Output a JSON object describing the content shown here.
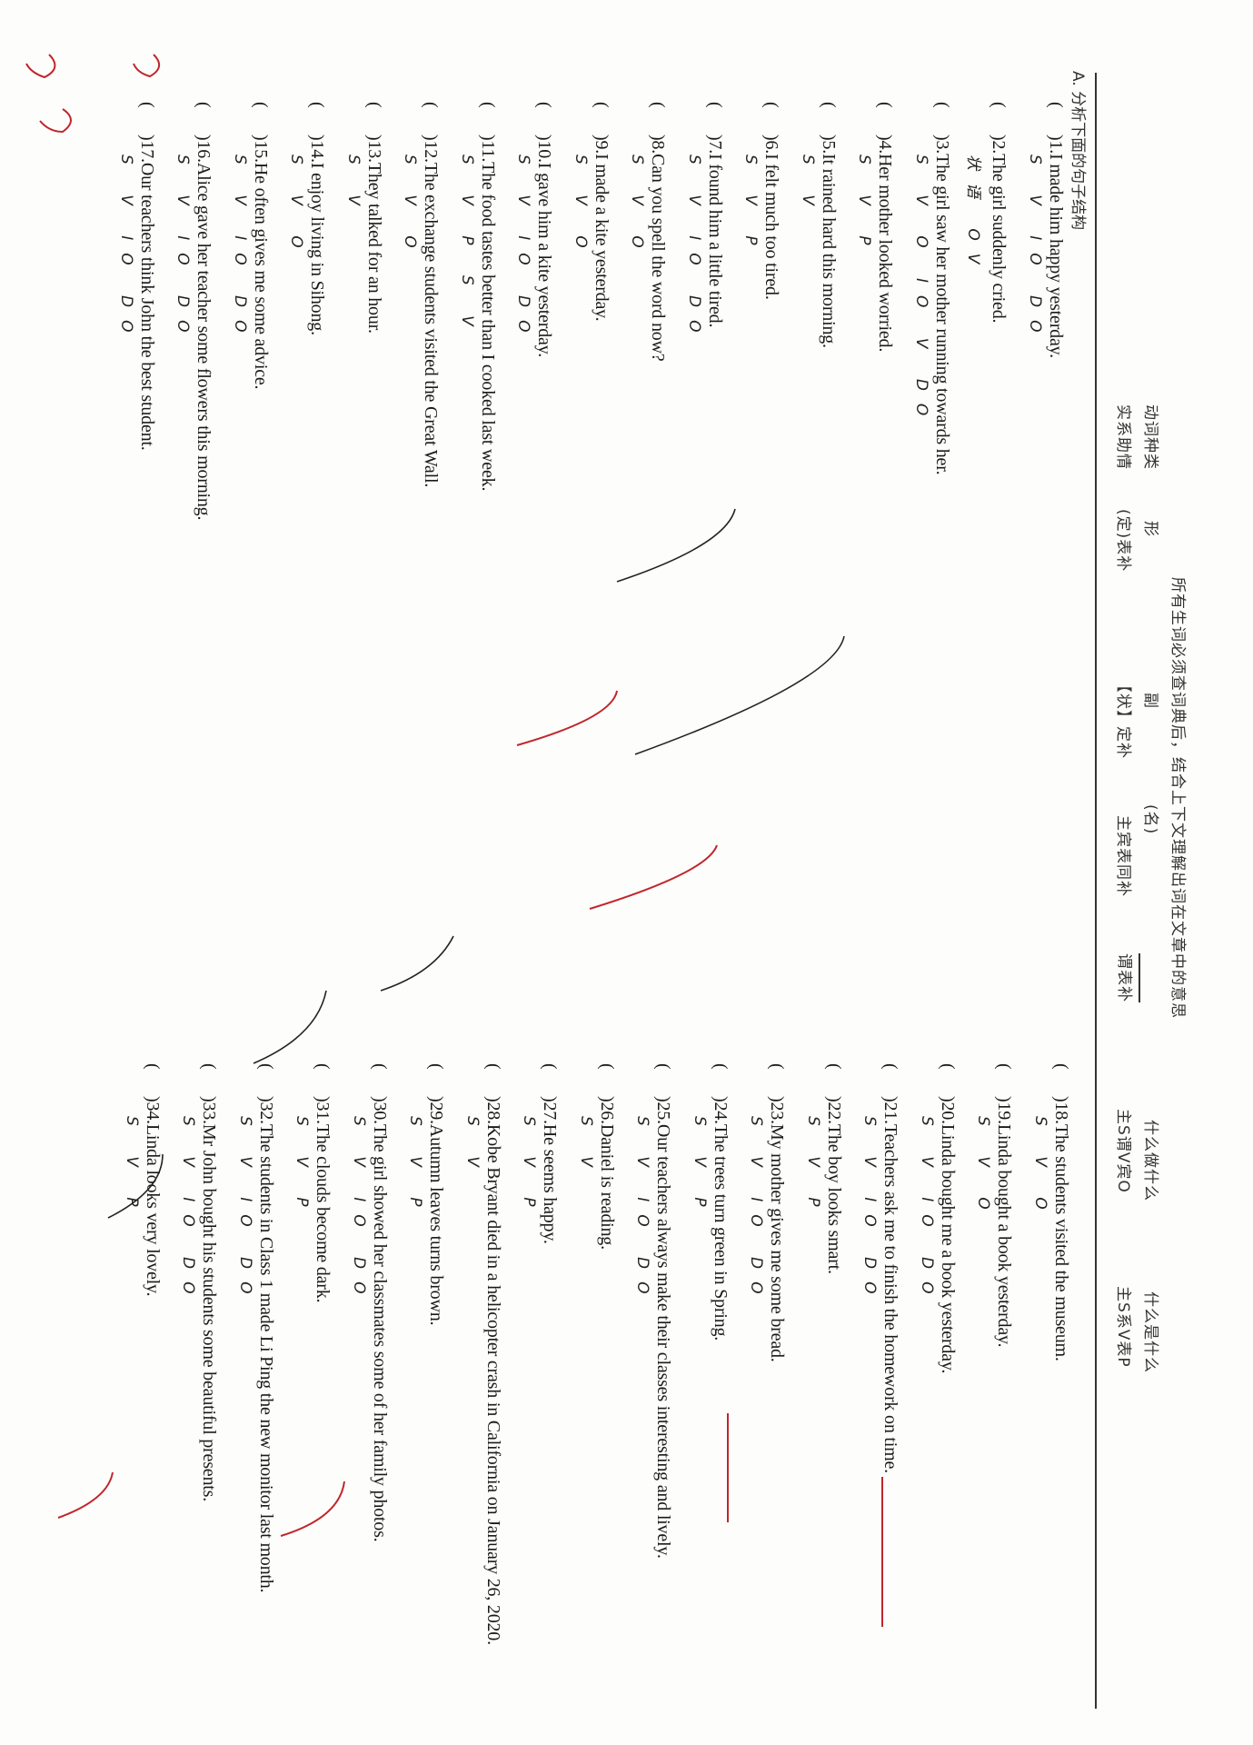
{
  "header": {
    "line1": "所有生词必须查词典后，结合上下文理解出词在文章中的意思",
    "line2": [
      "动词种类",
      "形",
      "副",
      "(名)",
      "什么做什么",
      "什么是什么"
    ],
    "line3": [
      "实系助情",
      "(定)表补",
      "【状】定补",
      "主宾表同补",
      "谓表补",
      "主S谓V宾O",
      "主S系V表P"
    ]
  },
  "section_title": "A. 分析下面的句子结构",
  "items_left": [
    {
      "num": ")1.",
      "text": "I made him happy yesterday.",
      "anno": "S V IO DO"
    },
    {
      "num": ")2.",
      "text": "The girl suddenly cried.",
      "anno": "状语 OV"
    },
    {
      "num": ")3.",
      "text": "The girl saw her mother running towards her.",
      "anno": "S V O IO V DO"
    },
    {
      "num": ")4.",
      "text": "Her mother looked worried.",
      "anno": "S V P"
    },
    {
      "num": ")5.",
      "text": "It rained hard this morning.",
      "anno": "S V"
    },
    {
      "num": ")6.",
      "text": "I felt much too tired.",
      "anno": "S V P"
    },
    {
      "num": ")7.",
      "text": "I found him a little tired.",
      "anno": "S V IO DO"
    },
    {
      "num": ")8.",
      "text": "Can you spell the word now?",
      "anno": "S V O"
    },
    {
      "num": ")9.",
      "text": "I made a kite yesterday.",
      "anno": "S V O"
    },
    {
      "num": ")10.",
      "text": "I gave him a kite yesterday.",
      "anno": "S V IO DO"
    },
    {
      "num": ")11.",
      "text": "The food tastes better than I cooked last week.",
      "anno": "S V P S V"
    },
    {
      "num": ")12.",
      "text": "The exchange students visited the Great Wall.",
      "anno": "S V O"
    },
    {
      "num": ")13.",
      "text": "They talked for an hour.",
      "anno": "S V"
    },
    {
      "num": ")14.",
      "text": "I enjoy living in Sihong.",
      "anno": "S V O"
    },
    {
      "num": ")15.",
      "text": "He often gives me some advice.",
      "anno": "S V IO DO"
    },
    {
      "num": ")16.",
      "text": "Alice gave her teacher some flowers this morning.",
      "anno": "S V IO DO"
    },
    {
      "num": ")17.",
      "text": "Our teachers think John the best student.",
      "anno": "S V IO DO"
    }
  ],
  "items_right": [
    {
      "num": ")18.",
      "text": "The students visited the museum.",
      "anno": "S V O"
    },
    {
      "num": ")19.",
      "text": "Linda bought a book yesterday.",
      "anno": "S V O"
    },
    {
      "num": ")20.",
      "text": "Linda bought me a book yesterday.",
      "anno": "S V IO DO"
    },
    {
      "num": ")21.",
      "text": "Teachers ask me to finish the homework on time.",
      "anno": "S V IO DO"
    },
    {
      "num": ")22.",
      "text": "The boy looks smart.",
      "anno": "S V P"
    },
    {
      "num": ")23.",
      "text": "My mother gives me some bread.",
      "anno": "S V IO DO"
    },
    {
      "num": ")24.",
      "text": "The trees turn green in Spring.",
      "anno": "S V P"
    },
    {
      "num": ")25.",
      "text": "Our teachers always make their classes interesting and lively.",
      "anno": "S V IO DO"
    },
    {
      "num": ")26.",
      "text": "Daniel is reading.",
      "anno": "S V"
    },
    {
      "num": ")27.",
      "text": "He seems happy.",
      "anno": "S V P"
    },
    {
      "num": ")28.",
      "text": "Kobe Bryant died in a helicopter crash in California on January 26, 2020.",
      "anno": "S V"
    },
    {
      "num": ")29.",
      "text": "Autumn leaves turns brown.",
      "anno": "S V P"
    },
    {
      "num": ")30.",
      "text": "The girl showed her classmates some of her family photos.",
      "anno": "S V IO DO"
    },
    {
      "num": ")31.",
      "text": "The clouds become dark.",
      "anno": "S V P"
    },
    {
      "num": ")32.",
      "text": "The students in Class 1 made Li Ping the new monitor last month.",
      "anno": "S V IO DO"
    },
    {
      "num": ")33.",
      "text": "Mr John bought his students some beautiful presents.",
      "anno": "S V IO DO"
    },
    {
      "num": ")34.",
      "text": "Linda looks very lovely.",
      "anno": "S V P"
    }
  ],
  "paren": "(",
  "colors": {
    "ink": "#1a1a1a",
    "red_pen": "#c0262b"
  }
}
